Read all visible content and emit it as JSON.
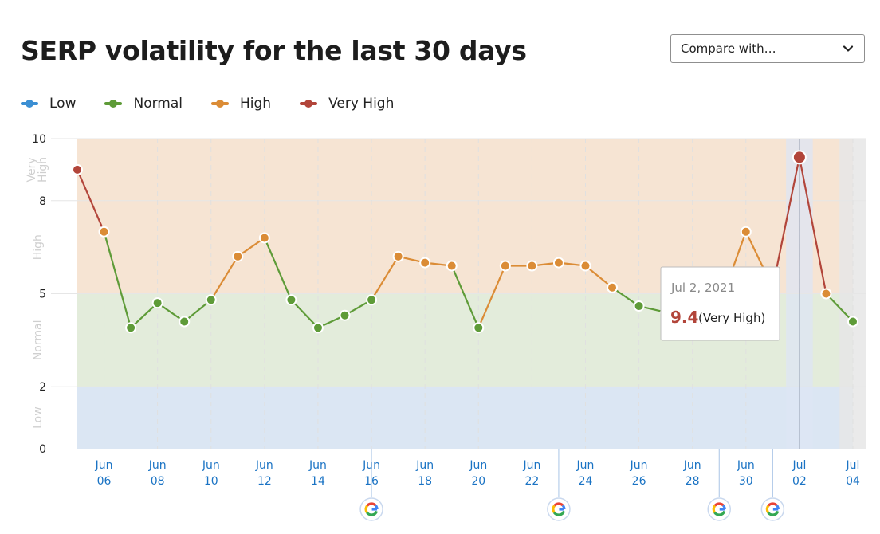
{
  "header": {
    "title": "SERP volatility for the last 30 days",
    "compare_label": "Compare with…"
  },
  "legend": [
    {
      "label": "Low",
      "color": "#3b8fd3"
    },
    {
      "label": "Normal",
      "color": "#5e9b38"
    },
    {
      "label": "High",
      "color": "#db8c36"
    },
    {
      "label": "Very High",
      "color": "#b2453a"
    }
  ],
  "tooltip": {
    "date": "Jul 2, 2021",
    "value": "9.4",
    "level": "(Very High)"
  },
  "chart_data": {
    "type": "line",
    "title": "SERP volatility for the last 30 days",
    "ylim": [
      0,
      10
    ],
    "y_ticks": [
      "0",
      "2",
      "5",
      "8",
      "10"
    ],
    "y_tick_values": [
      0,
      2,
      5,
      8,
      10
    ],
    "bands": [
      {
        "label": "Low",
        "from": 0,
        "to": 2,
        "color": "#dbe6f3"
      },
      {
        "label": "Normal",
        "from": 2,
        "to": 5,
        "color": "#e3ecdb"
      },
      {
        "label": "High",
        "from": 5,
        "to": 8,
        "color": "#f6e4d3"
      },
      {
        "label": "Very High",
        "from": 8,
        "to": 10,
        "color": "#f6e4d3"
      }
    ],
    "x_tick_labels": [
      {
        "month": "Jun",
        "day": "06"
      },
      {
        "month": "Jun",
        "day": "08"
      },
      {
        "month": "Jun",
        "day": "10"
      },
      {
        "month": "Jun",
        "day": "12"
      },
      {
        "month": "Jun",
        "day": "14"
      },
      {
        "month": "Jun",
        "day": "16"
      },
      {
        "month": "Jun",
        "day": "18"
      },
      {
        "month": "Jun",
        "day": "20"
      },
      {
        "month": "Jun",
        "day": "22"
      },
      {
        "month": "Jun",
        "day": "24"
      },
      {
        "month": "Jun",
        "day": "26"
      },
      {
        "month": "Jun",
        "day": "28"
      },
      {
        "month": "Jun",
        "day": "30"
      },
      {
        "month": "Jul",
        "day": "02"
      },
      {
        "month": "Jul",
        "day": "04"
      }
    ],
    "x": [
      "2021-06-05",
      "2021-06-06",
      "2021-06-07",
      "2021-06-08",
      "2021-06-09",
      "2021-06-10",
      "2021-06-11",
      "2021-06-12",
      "2021-06-13",
      "2021-06-14",
      "2021-06-15",
      "2021-06-16",
      "2021-06-17",
      "2021-06-18",
      "2021-06-19",
      "2021-06-20",
      "2021-06-21",
      "2021-06-22",
      "2021-06-23",
      "2021-06-24",
      "2021-06-25",
      "2021-06-26",
      "2021-06-27",
      "2021-06-28",
      "2021-06-29",
      "2021-06-30",
      "2021-07-01",
      "2021-07-02",
      "2021-07-03",
      "2021-07-04"
    ],
    "values": [
      9.0,
      7.0,
      3.9,
      4.7,
      4.1,
      4.8,
      6.2,
      6.8,
      4.8,
      3.9,
      4.3,
      4.8,
      6.2,
      6.0,
      5.9,
      3.9,
      5.9,
      5.9,
      6.0,
      5.9,
      5.2,
      4.6,
      4.4,
      4.5,
      4.6,
      7.0,
      5.2,
      9.4,
      5.0,
      4.1
    ],
    "highlighted_date": "2021-07-02",
    "google_update_dates": [
      "2021-06-16",
      "2021-06-23",
      "2021-06-29",
      "2021-07-01"
    ]
  }
}
